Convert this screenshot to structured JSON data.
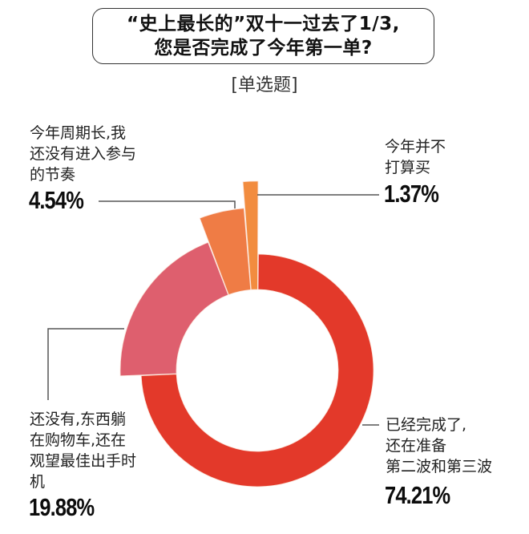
{
  "header": {
    "title_line1": "“史上最长的”双十一过去了1/3,",
    "title_line2": "您是否完成了今年第一单?",
    "subtitle": "[单选题]"
  },
  "labels": {
    "not_joined": {
      "text_lines": [
        "今年周期长,我",
        "还没有进入参与",
        "的节奏"
      ],
      "value": "4.54%"
    },
    "not_buying": {
      "text_lines": [
        "今年并不",
        "打算买"
      ],
      "value": "1.37%"
    },
    "in_cart": {
      "text_lines": [
        "还没有,东西躺",
        "在购物车,还在",
        "观望最佳出手时",
        "机"
      ],
      "value": "19.88%"
    },
    "done": {
      "text_lines": [
        "已经完成了,",
        "还在准备",
        "第二波和第三波"
      ],
      "value": "74.21%"
    }
  },
  "colors": {
    "done": "#E3392A",
    "in_cart": "#DE5F6E",
    "not_joined": "#EF7C45",
    "not_buying": "#F28C3F"
  },
  "chart_data": {
    "type": "pie",
    "variant": "donut-with-extruded-slices",
    "title": "“史上最长的”双十一过去了1/3,您是否完成了今年第一单?",
    "subtitle": "[单选题]",
    "categories": [
      "已经完成了,还在准备第二波和第三波",
      "还没有,东西躺在购物车,还在观望最佳出手时机",
      "今年周期长,我还没有进入参与的节奏",
      "今年并不打算买"
    ],
    "values": [
      74.21,
      19.88,
      4.54,
      1.37
    ],
    "unit": "%",
    "colors": [
      "#E3392A",
      "#DE5F6E",
      "#EF7C45",
      "#F28C3F"
    ],
    "legend": "none (direct labels)"
  }
}
